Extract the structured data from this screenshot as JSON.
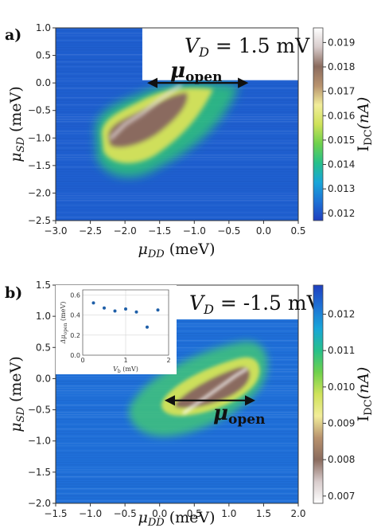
{
  "chart_data": [
    {
      "type": "heatmap",
      "panel_label": "a)",
      "annotation": "V_D = 1.5 mV",
      "annotation_parts": {
        "sym": "V",
        "sub": "D",
        "rest": " = 1.5 mV"
      },
      "arrow_label": "μopen",
      "arrow_parts": {
        "sym": "μ",
        "sub": "open"
      },
      "arrow_x": [
        -1.65,
        -0.25
      ],
      "arrow_y": 0.0,
      "xlabel": "μ_DD (meV)",
      "xlabel_parts": {
        "sym": "μ",
        "sub": "DD",
        "rest": " (meV)"
      },
      "ylabel": "μ_SD (meV)",
      "ylabel_parts": {
        "sym": "μ",
        "sub": "SD",
        "rest": " (meV)"
      },
      "xlim": [
        -3.0,
        0.5
      ],
      "ylim": [
        -2.5,
        1.0
      ],
      "xticks": [
        -3.0,
        -2.5,
        -2.0,
        -1.5,
        -1.0,
        -0.5,
        0.0,
        0.5
      ],
      "xtick_labels": [
        "−3.0",
        "−2.5",
        "−2.0",
        "−1.5",
        "−1.0",
        "−0.5",
        "0.0",
        "0.5"
      ],
      "yticks": [
        -2.5,
        -2.0,
        -1.5,
        -1.0,
        -0.5,
        0.0,
        0.5,
        1.0
      ],
      "ytick_labels": [
        "−2.5",
        "−2.0",
        "−1.5",
        "−1.0",
        "−0.5",
        "0.0",
        "0.5",
        "1.0"
      ],
      "colorbar": {
        "label": "I_DC(nA)",
        "label_parts": {
          "sym": "I",
          "sub": "DC",
          "rest": "(nA)"
        },
        "range": [
          0.0117,
          0.0196
        ],
        "ticks": [
          0.012,
          0.013,
          0.014,
          0.015,
          0.016,
          0.017,
          0.018,
          0.019
        ],
        "tick_labels": [
          "0.012",
          "0.013",
          "0.014",
          "0.015",
          "0.016",
          "0.017",
          "0.018",
          "0.019"
        ],
        "colormap": [
          "#1f3fbf",
          "#1e73d6",
          "#19a6d8",
          "#27c08a",
          "#6fd14c",
          "#cfe25a",
          "#f2ed9a",
          "#b8926e",
          "#8a6b5e",
          "#d8cccc",
          "#ffffff"
        ]
      },
      "missing_region": {
        "x": [
          -1.75,
          0.5
        ],
        "y": [
          0.05,
          1.0
        ]
      },
      "ridge": [
        [
          -2.2,
          -1.0
        ],
        [
          -2.0,
          -0.75
        ],
        [
          -1.75,
          -0.55
        ],
        [
          -1.5,
          -0.3
        ],
        [
          -1.2,
          -0.05
        ]
      ],
      "grid": false
    },
    {
      "type": "heatmap",
      "panel_label": "b)",
      "annotation": "V_D = -1.5 mV",
      "annotation_parts": {
        "sym": "V",
        "sub": "D",
        "rest": " = -1.5 mV"
      },
      "arrow_label": "μopen",
      "arrow_parts": {
        "sym": "μ",
        "sub": "open"
      },
      "arrow_x": [
        0.1,
        1.35
      ],
      "arrow_y": -0.35,
      "xlabel": "μ_DD (meV)",
      "xlabel_parts": {
        "sym": "μ",
        "sub": "DD",
        "rest": " (meV)"
      },
      "ylabel": "μ_SD (meV)",
      "ylabel_parts": {
        "sym": "μ",
        "sub": "SD",
        "rest": " (meV)"
      },
      "xlim": [
        -1.5,
        2.0
      ],
      "ylim": [
        -2.0,
        1.5
      ],
      "xticks": [
        -1.5,
        -1.0,
        -0.5,
        0.0,
        0.5,
        1.0,
        1.5,
        2.0
      ],
      "xtick_labels": [
        "−1.5",
        "−1.0",
        "−0.5",
        "0.0",
        "0.5",
        "1.0",
        "1.5",
        "2.0"
      ],
      "yticks": [
        -2.0,
        -1.5,
        -1.0,
        -0.5,
        0.0,
        0.5,
        1.0,
        1.5
      ],
      "ytick_labels": [
        "−2.0",
        "−1.5",
        "−1.0",
        "−0.5",
        "0.0",
        "0.5",
        "1.0",
        "1.5"
      ],
      "colorbar": {
        "label": "I_DC(nA)",
        "label_parts": {
          "sym": "I",
          "sub": "DC",
          "rest": "(nA)"
        },
        "range": [
          0.0068,
          0.0128
        ],
        "ticks": [
          0.007,
          0.008,
          0.009,
          0.01,
          0.011,
          0.012
        ],
        "tick_labels": [
          "0.007",
          "0.008",
          "0.009",
          "0.010",
          "0.011",
          "0.012"
        ],
        "colormap": [
          "#ffffff",
          "#d8cccc",
          "#8a6b5e",
          "#b8926e",
          "#f2ed9a",
          "#cfe25a",
          "#6fd14c",
          "#27c08a",
          "#19a6d8",
          "#1e73d6",
          "#1f3fbf"
        ]
      },
      "missing_region": {
        "x": [
          -1.5,
          2.0
        ],
        "y": [
          0.95,
          1.5
        ]
      },
      "ridge": [
        [
          0.35,
          -0.55
        ],
        [
          0.6,
          -0.35
        ],
        [
          0.85,
          -0.15
        ],
        [
          1.1,
          0.05
        ],
        [
          1.25,
          0.15
        ]
      ],
      "grid": false,
      "inset": {
        "type": "scatter",
        "x": [
          0.25,
          0.5,
          0.75,
          1.0,
          1.25,
          1.5,
          1.75
        ],
        "y": [
          0.52,
          0.47,
          0.44,
          0.46,
          0.43,
          0.28,
          0.45
        ],
        "xlim": [
          0.0,
          2.0
        ],
        "ylim": [
          0.0,
          0.65
        ],
        "xticks": [
          0,
          1,
          2
        ],
        "xtick_labels": [
          "0",
          "1",
          "2"
        ],
        "yticks": [
          0.0,
          0.2,
          0.4,
          0.6
        ],
        "ytick_labels": [
          "0.0",
          "0.2",
          "0.4",
          "0.6"
        ],
        "xlabel": "V_b (mV)",
        "xlabel_parts": {
          "sym": "V",
          "sub": "b",
          "rest": " (mV)"
        },
        "ylabel": "Δμopen (meV)",
        "ylabel_parts": {
          "sym": "Δμ",
          "sub": "open",
          "rest": " (meV)"
        },
        "marker_color": "#1f5fa8",
        "grid": true
      }
    }
  ]
}
